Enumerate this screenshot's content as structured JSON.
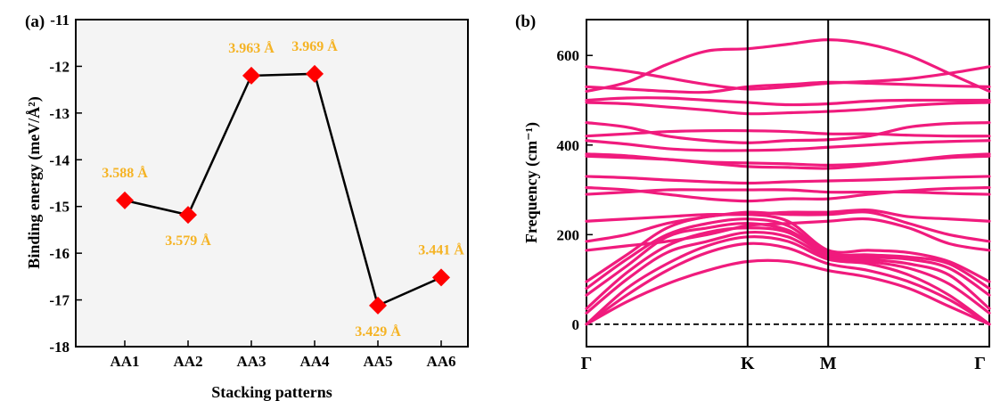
{
  "chart_data": [
    {
      "panel_label": "(a)",
      "type": "line",
      "xlabel": "Stacking patterns",
      "ylabel": "Binding energy (meV/Å²)",
      "ylim": [
        -18,
        -11
      ],
      "yticks": [
        "-18",
        "-17",
        "-16",
        "-15",
        "-14",
        "-13",
        "-12",
        "-11"
      ],
      "categories": [
        "AA1",
        "AA2",
        "AA3",
        "AA4",
        "AA5",
        "AA6"
      ],
      "values": [
        -14.87,
        -15.18,
        -12.2,
        -12.16,
        -17.12,
        -16.52
      ],
      "annotations": [
        "3.588 Å",
        "3.579 Å",
        "3.963 Å",
        "3.969 Å",
        "3.429 Å",
        "3.441 Å"
      ],
      "line_color": "#000000",
      "marker_color": "#ff0000",
      "annotation_color": "#f5b324",
      "grid": false
    },
    {
      "panel_label": "(b)",
      "type": "line",
      "xlabel": "",
      "ylabel": "Frequency (cm⁻¹)",
      "ylim": [
        -50,
        680
      ],
      "yticks": [
        "0",
        "200",
        "400",
        "600"
      ],
      "x_ticks": [
        "Γ",
        "K",
        "M",
        "Γ"
      ],
      "x_tick_positions": [
        0,
        1,
        1.5,
        2.5
      ],
      "zero_line": "dashed",
      "line_color": "#f01b7d",
      "x": [
        0,
        0.25,
        0.5,
        0.75,
        1,
        1.25,
        1.5,
        1.75,
        2,
        2.25,
        2.5
      ],
      "series": [
        {
          "values": [
            0,
            50,
            90,
            120,
            140,
            140,
            120,
            105,
            80,
            40,
            0
          ]
        },
        {
          "values": [
            0,
            65,
            120,
            160,
            180,
            170,
            135,
            120,
            95,
            55,
            0
          ]
        },
        {
          "values": [
            0,
            80,
            135,
            175,
            195,
            185,
            145,
            135,
            110,
            65,
            0
          ]
        },
        {
          "values": [
            25,
            100,
            160,
            185,
            205,
            195,
            150,
            140,
            125,
            90,
            25
          ]
        },
        {
          "values": [
            35,
            115,
            175,
            205,
            215,
            205,
            155,
            145,
            135,
            110,
            35
          ]
        },
        {
          "values": [
            65,
            130,
            195,
            215,
            225,
            210,
            160,
            150,
            145,
            125,
            65
          ]
        },
        {
          "values": [
            80,
            145,
            200,
            225,
            235,
            220,
            160,
            155,
            150,
            135,
            80
          ]
        },
        {
          "values": [
            95,
            155,
            215,
            240,
            245,
            230,
            165,
            165,
            160,
            140,
            95
          ]
        },
        {
          "values": [
            165,
            175,
            185,
            200,
            220,
            225,
            230,
            235,
            215,
            180,
            165
          ]
        },
        {
          "values": [
            185,
            200,
            225,
            240,
            250,
            245,
            245,
            250,
            225,
            200,
            185
          ]
        },
        {
          "values": [
            230,
            235,
            240,
            245,
            245,
            250,
            250,
            255,
            240,
            235,
            230
          ]
        },
        {
          "values": [
            290,
            295,
            300,
            300,
            300,
            300,
            295,
            295,
            295,
            292,
            290
          ]
        },
        {
          "values": [
            305,
            300,
            290,
            280,
            275,
            280,
            280,
            290,
            298,
            303,
            305
          ]
        },
        {
          "values": [
            330,
            327,
            322,
            318,
            315,
            318,
            320,
            322,
            325,
            328,
            330
          ]
        },
        {
          "values": [
            375,
            372,
            368,
            362,
            360,
            358,
            355,
            358,
            365,
            372,
            375
          ]
        },
        {
          "values": [
            380,
            376,
            368,
            360,
            352,
            350,
            348,
            355,
            365,
            375,
            380
          ]
        },
        {
          "values": [
            410,
            402,
            392,
            388,
            388,
            390,
            395,
            400,
            405,
            408,
            410
          ]
        },
        {
          "values": [
            420,
            425,
            430,
            432,
            432,
            430,
            425,
            425,
            422,
            420,
            420
          ]
        },
        {
          "values": [
            450,
            440,
            420,
            410,
            405,
            410,
            412,
            420,
            440,
            448,
            450
          ]
        },
        {
          "values": [
            495,
            492,
            485,
            478,
            470,
            472,
            475,
            480,
            488,
            493,
            495
          ]
        },
        {
          "values": [
            500,
            505,
            505,
            500,
            495,
            490,
            492,
            498,
            500,
            500,
            500
          ]
        },
        {
          "values": [
            530,
            525,
            520,
            518,
            530,
            535,
            540,
            538,
            535,
            532,
            530
          ]
        },
        {
          "values": [
            575,
            565,
            550,
            535,
            525,
            530,
            538,
            542,
            548,
            560,
            575
          ]
        },
        {
          "values": [
            520,
            540,
            580,
            610,
            615,
            625,
            635,
            625,
            600,
            560,
            520
          ]
        }
      ]
    }
  ]
}
